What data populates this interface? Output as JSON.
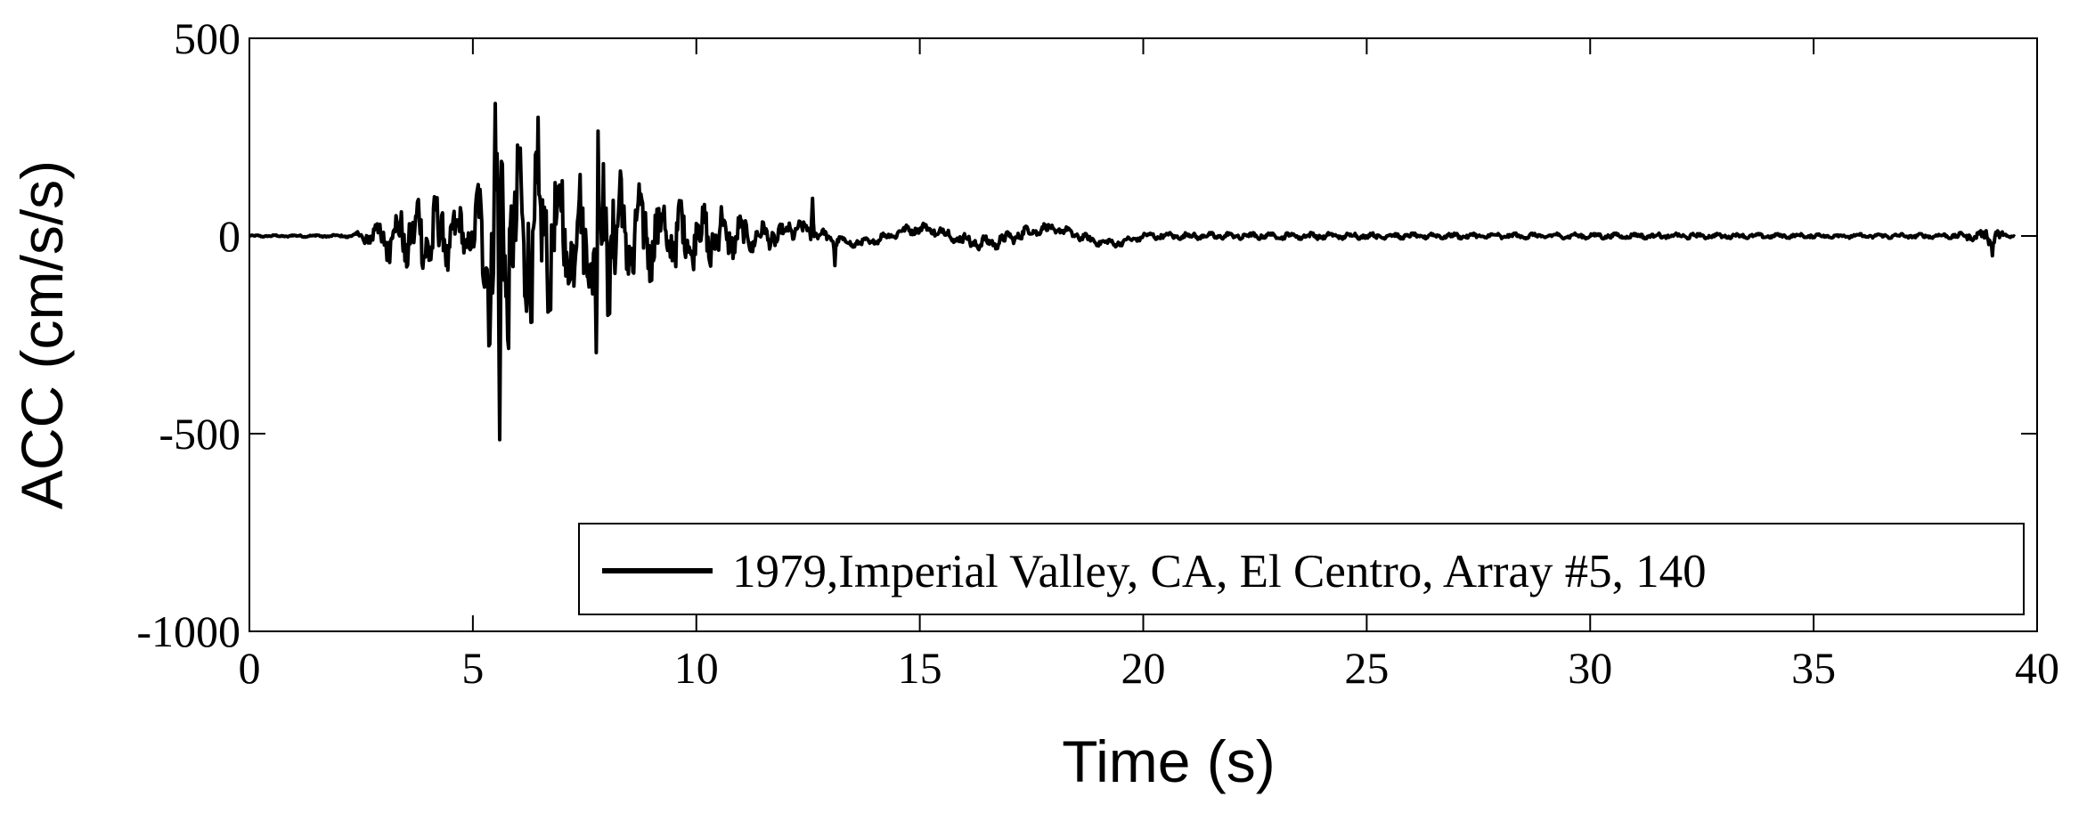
{
  "chart_data": {
    "type": "line",
    "title": "",
    "xlabel": "Time (s)",
    "ylabel": "ACC (cm/s/s)",
    "xlim": [
      0,
      40
    ],
    "ylim": [
      -1000,
      500
    ],
    "x_ticks": [
      0,
      5,
      10,
      15,
      20,
      25,
      30,
      35,
      40
    ],
    "y_ticks": [
      500,
      0,
      -500,
      -1000
    ],
    "x_tick_labels": [
      "0",
      "5",
      "10",
      "15",
      "20",
      "25",
      "30",
      "35",
      "40"
    ],
    "y_tick_labels": [
      "500",
      "0",
      "-500",
      "-1000"
    ],
    "grid": false,
    "legend_position": "bottom-right",
    "series": [
      {
        "name": "1979,Imperial Valley, CA, El Centro, Array #5, 140",
        "color": "#000000",
        "envelope": {
          "t": [
            0,
            2.3,
            2.5,
            3.0,
            3.5,
            4.0,
            4.5,
            5.0,
            5.5,
            6.0,
            6.5,
            7.0,
            7.5,
            8.0,
            8.5,
            9.0,
            9.5,
            10.0,
            10.5,
            11.0,
            11.5,
            12.0,
            12.5,
            13.0,
            13.5,
            14.0,
            15.0,
            16.0,
            17.0,
            18.0,
            19.0,
            20.0,
            22.0,
            24.0,
            26.0,
            28.0,
            30.0,
            32.0,
            34.0,
            36.0,
            38.0,
            38.8,
            39.0,
            39.2,
            39.5
          ],
          "amp": [
            3,
            5,
            25,
            90,
            110,
            150,
            120,
            80,
            520,
            330,
            300,
            230,
            220,
            290,
            210,
            160,
            130,
            120,
            110,
            70,
            50,
            40,
            30,
            20,
            15,
            15,
            20,
            25,
            25,
            18,
            15,
            12,
            12,
            12,
            10,
            10,
            10,
            10,
            8,
            8,
            8,
            20,
            50,
            15,
            5
          ]
        },
        "peaks": [
          {
            "t": 5.5,
            "v": 335
          },
          {
            "t": 5.6,
            "v": -515
          },
          {
            "t": 6.45,
            "v": 300
          },
          {
            "t": 7.8,
            "v": 265
          },
          {
            "t": 7.75,
            "v": -295
          },
          {
            "t": 12.6,
            "v": 95
          },
          {
            "t": 13.1,
            "v": -75
          },
          {
            "t": 39.0,
            "v": -50
          }
        ]
      }
    ]
  }
}
